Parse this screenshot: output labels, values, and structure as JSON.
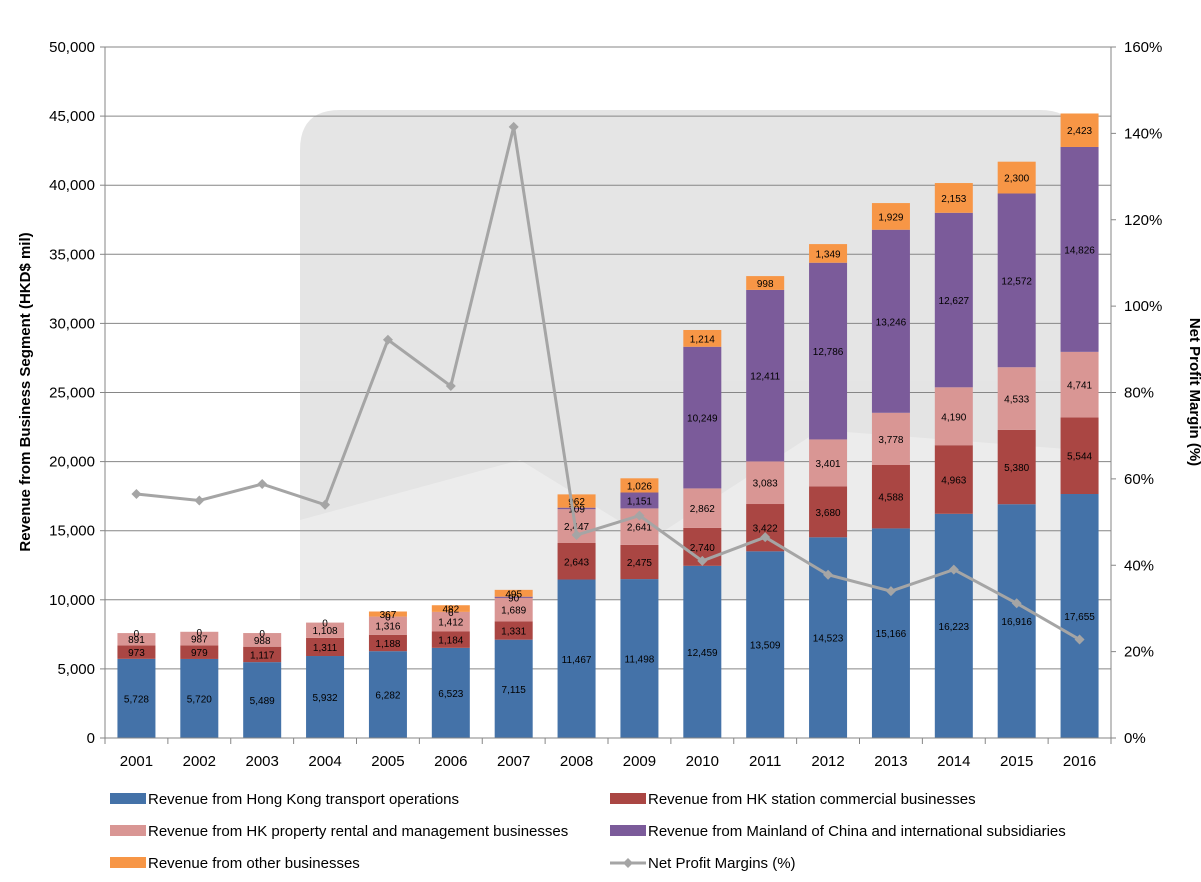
{
  "chart_data": {
    "type": "bar",
    "stacked": true,
    "categories": [
      "2001",
      "2002",
      "2003",
      "2004",
      "2005",
      "2006",
      "2007",
      "2008",
      "2009",
      "2010",
      "2011",
      "2012",
      "2013",
      "2014",
      "2015",
      "2016"
    ],
    "series": [
      {
        "name": "Revenue from Hong Kong transport operations",
        "color": "#4472A8",
        "values": [
          5728,
          5720,
          5489,
          5932,
          6282,
          6523,
          7115,
          11467,
          11498,
          12459,
          13509,
          14523,
          15166,
          16223,
          16916,
          17655
        ],
        "labels": [
          "5,728",
          "5,720",
          "5,489",
          "5,932",
          "6,282",
          "6,523",
          "7,115",
          "11,467",
          "11,498",
          "12,459",
          "13,509",
          "14,523",
          "15,166",
          "16,223",
          "16,916",
          "17,655"
        ]
      },
      {
        "name": "Revenue from HK station commercial businesses",
        "color": "#AA4643",
        "values": [
          973,
          979,
          1117,
          1311,
          1188,
          1184,
          1331,
          2643,
          2475,
          2740,
          3422,
          3680,
          4588,
          4963,
          5380,
          5544
        ],
        "labels": [
          "973",
          "979",
          "1,117",
          "1,311",
          "1,188",
          "1,184",
          "1,331",
          "2,643",
          "2,475",
          "2,740",
          "3,422",
          "3,680",
          "4,588",
          "4,963",
          "5,380",
          "5,544"
        ]
      },
      {
        "name": "Revenue from HK property rental and management businesses",
        "color": "#D99694",
        "values": [
          891,
          987,
          988,
          1108,
          1316,
          1412,
          1689,
          2447,
          2641,
          2862,
          3083,
          3401,
          3778,
          4190,
          4533,
          4741
        ],
        "labels": [
          "891",
          "987",
          "988",
          "1,108",
          "1,316",
          "1,412",
          "1,689",
          "2,447",
          "2,641",
          "2,862",
          "3,083",
          "3,401",
          "3,778",
          "4,190",
          "4,533",
          "4,741"
        ]
      },
      {
        "name": "Revenue from Mainland of China and international subsidiaries",
        "color": "#7B5B9A",
        "values": [
          0,
          0,
          0,
          0,
          0,
          6,
          90,
          109,
          1151,
          10249,
          12411,
          12786,
          13246,
          12627,
          12572,
          14826
        ],
        "labels": [
          "0",
          "0",
          "0",
          "0",
          "0",
          "6",
          "90",
          "109",
          "1,151",
          "10,249",
          "12,411",
          "12,786",
          "13,246",
          "12,627",
          "12,572",
          "14,826"
        ]
      },
      {
        "name": "Revenue from other businesses",
        "color": "#F79646",
        "values": [
          0,
          0,
          0,
          0,
          367,
          482,
          495,
          962,
          1026,
          1214,
          998,
          1349,
          1929,
          2153,
          2300,
          2423
        ],
        "labels": [
          "",
          "",
          "",
          "",
          "367",
          "482",
          "495",
          "962",
          "1,026",
          "1,214",
          "998",
          "1,349",
          "1,929",
          "2,153",
          "2,300",
          "2,423"
        ]
      }
    ],
    "line_series": {
      "name": "Net Profit Margins (%)",
      "color": "#A5A5A5",
      "axis": "right",
      "values": [
        56.5,
        55,
        58.8,
        54,
        92.2,
        81.5,
        141.5,
        47,
        51.5,
        41,
        46.5,
        37.8,
        34,
        39,
        31.2,
        22.8
      ]
    },
    "ylabel": "Revenue from Business Segment (HKD$ mil)",
    "y2label": "Net Profit Margin (%)",
    "ylim": [
      0,
      50000
    ],
    "y2lim": [
      0,
      160
    ],
    "yticks": [
      "0",
      "5,000",
      "10,000",
      "15,000",
      "20,000",
      "25,000",
      "30,000",
      "35,000",
      "40,000",
      "45,000",
      "50,000"
    ],
    "y2ticks": [
      "0%",
      "20%",
      "40%",
      "60%",
      "80%",
      "100%",
      "120%",
      "140%",
      "160%"
    ],
    "grid": true,
    "legend_position": "bottom"
  }
}
